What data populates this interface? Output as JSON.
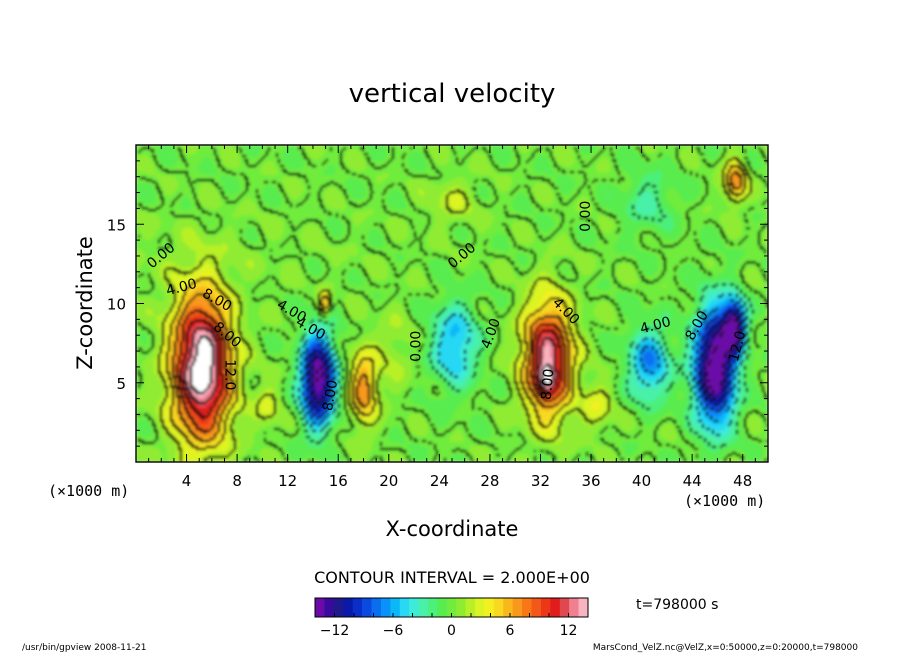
{
  "chart_data": {
    "type": "heatmap",
    "title": "vertical velocity",
    "xlabel": "X-coordinate",
    "ylabel": "Z-coordinate",
    "x_unit_left": "(×1000 m)",
    "x_unit_right": "(×1000 m)",
    "xlim": [
      0,
      50
    ],
    "ylim": [
      0,
      20
    ],
    "x_ticks": [
      4,
      8,
      12,
      16,
      20,
      24,
      28,
      32,
      36,
      40,
      44,
      48
    ],
    "y_ticks": [
      5,
      10,
      15
    ],
    "contour_interval_text": "CONTOUR INTERVAL = 2.000E+00",
    "time_text": "t=798000 s",
    "colorbar": {
      "range": [
        -14,
        14
      ],
      "tick_values": [
        -12,
        -6,
        0,
        6,
        12
      ],
      "tick_labels": [
        "−12",
        "−6",
        "0",
        "6",
        "12"
      ],
      "colors": [
        "#6a0aa8",
        "#3a0a9c",
        "#1e1a8c",
        "#0a1aa8",
        "#0a2ec8",
        "#0a4ae0",
        "#0a6ef0",
        "#0a92f8",
        "#0ab8f8",
        "#28d8f4",
        "#3cecd8",
        "#48f0a8",
        "#4cf07c",
        "#58ec50",
        "#70ec3c",
        "#90ec30",
        "#b8f028",
        "#dcf424",
        "#f4f020",
        "#f8d820",
        "#f8b81c",
        "#f8981c",
        "#f87818",
        "#f45818",
        "#ec3818",
        "#e01c1c",
        "#e04850",
        "#f08090",
        "#f8b4c0"
      ]
    },
    "contour_labels": [
      {
        "text": "0.00",
        "x": 2.0,
        "z": 13.0,
        "rotate": -40
      },
      {
        "text": "4.00",
        "x": 3.6,
        "z": 11.0,
        "rotate": -15
      },
      {
        "text": "8.00",
        "x": 6.4,
        "z": 10.2,
        "rotate": 30
      },
      {
        "text": "8.00",
        "x": 7.2,
        "z": 8.0,
        "rotate": 40
      },
      {
        "text": "12.0",
        "x": 7.4,
        "z": 5.5,
        "rotate": 90
      },
      {
        "text": "4.00",
        "x": 12.3,
        "z": 9.5,
        "rotate": 30
      },
      {
        "text": "4.00",
        "x": 13.8,
        "z": 8.4,
        "rotate": 30
      },
      {
        "text": "8.00",
        "x": 15.4,
        "z": 4.2,
        "rotate": -80
      },
      {
        "text": "0.00",
        "x": 22.2,
        "z": 7.3,
        "rotate": -90
      },
      {
        "text": "0.00",
        "x": 25.8,
        "z": 13.0,
        "rotate": -40
      },
      {
        "text": "4.00",
        "x": 28.1,
        "z": 8.1,
        "rotate": -70
      },
      {
        "text": "4.00",
        "x": 34.0,
        "z": 9.5,
        "rotate": 45
      },
      {
        "text": "8.00",
        "x": 32.6,
        "z": 4.9,
        "rotate": -85
      },
      {
        "text": "0.00",
        "x": 35.6,
        "z": 15.5,
        "rotate": -90
      },
      {
        "text": "4.00",
        "x": 41.1,
        "z": 8.6,
        "rotate": -15
      },
      {
        "text": "8.00",
        "x": 44.4,
        "z": 8.6,
        "rotate": -60
      },
      {
        "text": "12.0",
        "x": 47.6,
        "z": 7.3,
        "rotate": -75
      }
    ],
    "blobs": [
      {
        "x": 0,
        "z": 13.0,
        "value": 0.5,
        "sx": 18,
        "sz": 2.5
      },
      {
        "x": 5.2,
        "z": 6.0,
        "value": 16,
        "sx": 2.3,
        "sz": 4.5
      },
      {
        "x": 14.4,
        "z": 5.2,
        "value": -15,
        "sx": 1.3,
        "sz": 2.8
      },
      {
        "x": 18.0,
        "z": 4.7,
        "value": 7,
        "sx": 1.1,
        "sz": 2.3
      },
      {
        "x": 14.9,
        "z": 10.0,
        "value": 6,
        "sx": 0.5,
        "sz": 0.8
      },
      {
        "x": 20.4,
        "z": 7.0,
        "value": 1.5,
        "sx": 1.5,
        "sz": 2.5
      },
      {
        "x": 25.2,
        "z": 7.4,
        "value": -6,
        "sx": 1.8,
        "sz": 2.6
      },
      {
        "x": 32.6,
        "z": 6.5,
        "value": 13,
        "sx": 1.9,
        "sz": 3.5
      },
      {
        "x": 32.4,
        "z": 5.2,
        "value": 4,
        "sx": 0.7,
        "sz": 1.0
      },
      {
        "x": 40.6,
        "z": 6.2,
        "value": -7,
        "sx": 1.6,
        "sz": 2.2
      },
      {
        "x": 45.8,
        "z": 6.0,
        "value": -16,
        "sx": 1.6,
        "sz": 3.5
      },
      {
        "x": 47.3,
        "z": 8.6,
        "value": -13,
        "sx": 0.9,
        "sz": 1.6
      },
      {
        "x": 47.4,
        "z": 17.7,
        "value": 7,
        "sx": 0.9,
        "sz": 1.3
      },
      {
        "x": 40.5,
        "z": 16.5,
        "value": -2.5,
        "sx": 2.2,
        "sz": 2.0
      },
      {
        "x": 25.0,
        "z": 16.5,
        "value": 2,
        "sx": 2.0,
        "sz": 1.5
      },
      {
        "x": 36.5,
        "z": 3.5,
        "value": 3,
        "sx": 1.2,
        "sz": 1.5
      },
      {
        "x": 10.4,
        "z": 3.5,
        "value": 2.5,
        "sx": 1.0,
        "sz": 1.5
      }
    ]
  },
  "footer": {
    "left": "/usr/bin/gpview   2008-11-21",
    "right": "MarsCond_VelZ.nc@VelZ,x=0:50000,z=0:20000,t=798000"
  }
}
